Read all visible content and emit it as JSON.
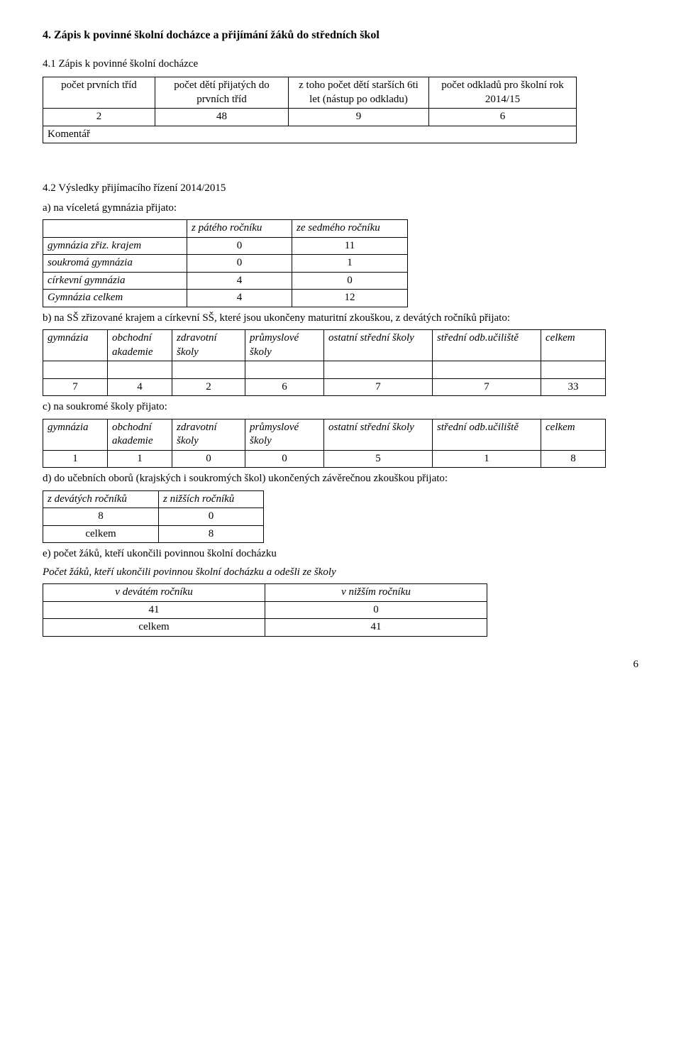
{
  "section": {
    "h1": "4. Zápis k povinné školní docházce a přijímání žáků do středních škol",
    "s41_title": "4.1 Zápis k povinné školní docházce",
    "s42_title": "4.2 Výsledky přijímacího řízení 2014/2015"
  },
  "t1": {
    "h": [
      "počet prvních tříd",
      "počet dětí přijatých do prvních tříd",
      "z toho počet dětí starších 6ti let (nástup po odkladu)",
      "počet odkladů pro  školní rok 2014/15"
    ],
    "r1": [
      "2",
      "48",
      "9",
      "6"
    ],
    "komentar": "Komentář",
    "col_widths": [
      "145px",
      "175px",
      "185px",
      "195px"
    ]
  },
  "labels": {
    "a": "a) na víceletá gymnázia přijato:",
    "b": "b) na SŠ zřizované krajem a církevní SŠ, které jsou ukončeny maturitní zkouškou, z devátých  ročníků přijato:",
    "c": "c) na soukromé školy přijato:",
    "d": "d) do učebních oborů (krajských i soukromých škol) ukončených závěrečnou zkouškou přijato:",
    "e": "e) počet žáků, kteří ukončili povinnou školní docházku",
    "e2": "Počet žáků, kteří ukončili povinnou školní docházku a odešli ze školy"
  },
  "t2": {
    "h": [
      "z pátého ročníku",
      "ze sedmého ročníku"
    ],
    "rows": [
      [
        "gymnázia zřiz. krajem",
        "0",
        "11"
      ],
      [
        "soukromá gymnázia",
        "0",
        "1"
      ],
      [
        "církevní gymnázia",
        "4",
        "0"
      ],
      [
        "Gymnázia celkem",
        "4",
        "12"
      ]
    ],
    "col_widths": [
      "190px",
      "135px",
      "150px"
    ]
  },
  "t3": {
    "h": [
      "gymnázia",
      "obchodní akademie",
      "zdravotní školy",
      "průmyslové školy",
      "ostatní střední školy",
      "střední odb.učiliště",
      "celkem"
    ],
    "r1": [
      "7",
      "4",
      "2",
      "6",
      "7",
      "7",
      "33"
    ],
    "col_widths": [
      "78px",
      "78px",
      "90px",
      "98px",
      "140px",
      "140px",
      "78px"
    ]
  },
  "t4": {
    "h": [
      "gymnázia",
      "obchodní akademie",
      "zdravotní školy",
      "průmyslové školy",
      "ostatní střední školy",
      "střední odb.učiliště",
      "celkem"
    ],
    "r1": [
      "1",
      "1",
      "0",
      "0",
      "5",
      "1",
      "8"
    ],
    "col_widths": [
      "78px",
      "78px",
      "90px",
      "98px",
      "140px",
      "140px",
      "78px"
    ]
  },
  "t5": {
    "h": [
      "z devátých ročníků",
      "z nižších ročníků"
    ],
    "rows": [
      [
        "8",
        "0"
      ],
      [
        "celkem",
        "8"
      ]
    ],
    "col_widths": [
      "150px",
      "135px"
    ]
  },
  "t6": {
    "h": [
      "v devátém ročníku",
      "v nižším ročníku"
    ],
    "rows": [
      [
        "41",
        "0"
      ],
      [
        "celkem",
        "41"
      ]
    ],
    "col_widths": [
      "300px",
      "300px"
    ]
  },
  "page_num": "6"
}
